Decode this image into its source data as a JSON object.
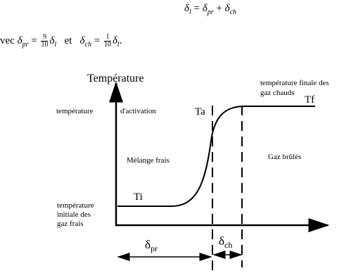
{
  "equation": {
    "lhs": {
      "base": "δ",
      "sub": "l"
    },
    "eq": "=",
    "term1": {
      "base": "δ",
      "sub": "pr"
    },
    "plus": "+",
    "term2": {
      "base": "δ",
      "sub": "ch"
    }
  },
  "definition": {
    "lead": "vec",
    "def1": {
      "base": "δ",
      "sub": "pr",
      "eq": "=",
      "num": "9",
      "den": "10",
      "rhs_base": "δ",
      "rhs_sub": "l"
    },
    "conj": "et",
    "def2": {
      "base": "δ",
      "sub": "ch",
      "eq": "=",
      "num": "1",
      "den": "10",
      "rhs_base": "δ",
      "rhs_sub": "l"
    },
    "end": "."
  },
  "diagram": {
    "y_axis_label": "Température",
    "activation_label": [
      "température",
      "d'activation"
    ],
    "ta": "Ta",
    "final_label": [
      "température finale des",
      "gaz chauds"
    ],
    "tf": "Tf",
    "fresh_region": "Mélange frais",
    "burnt_region": "Gaz brûlés",
    "ti": "Ti",
    "initial_label": [
      "température",
      "initiale des",
      "gaz frais"
    ],
    "delta_pr": {
      "base": "δ",
      "sub": "pr"
    },
    "delta_ch": {
      "base": "δ",
      "sub": "ch"
    }
  }
}
